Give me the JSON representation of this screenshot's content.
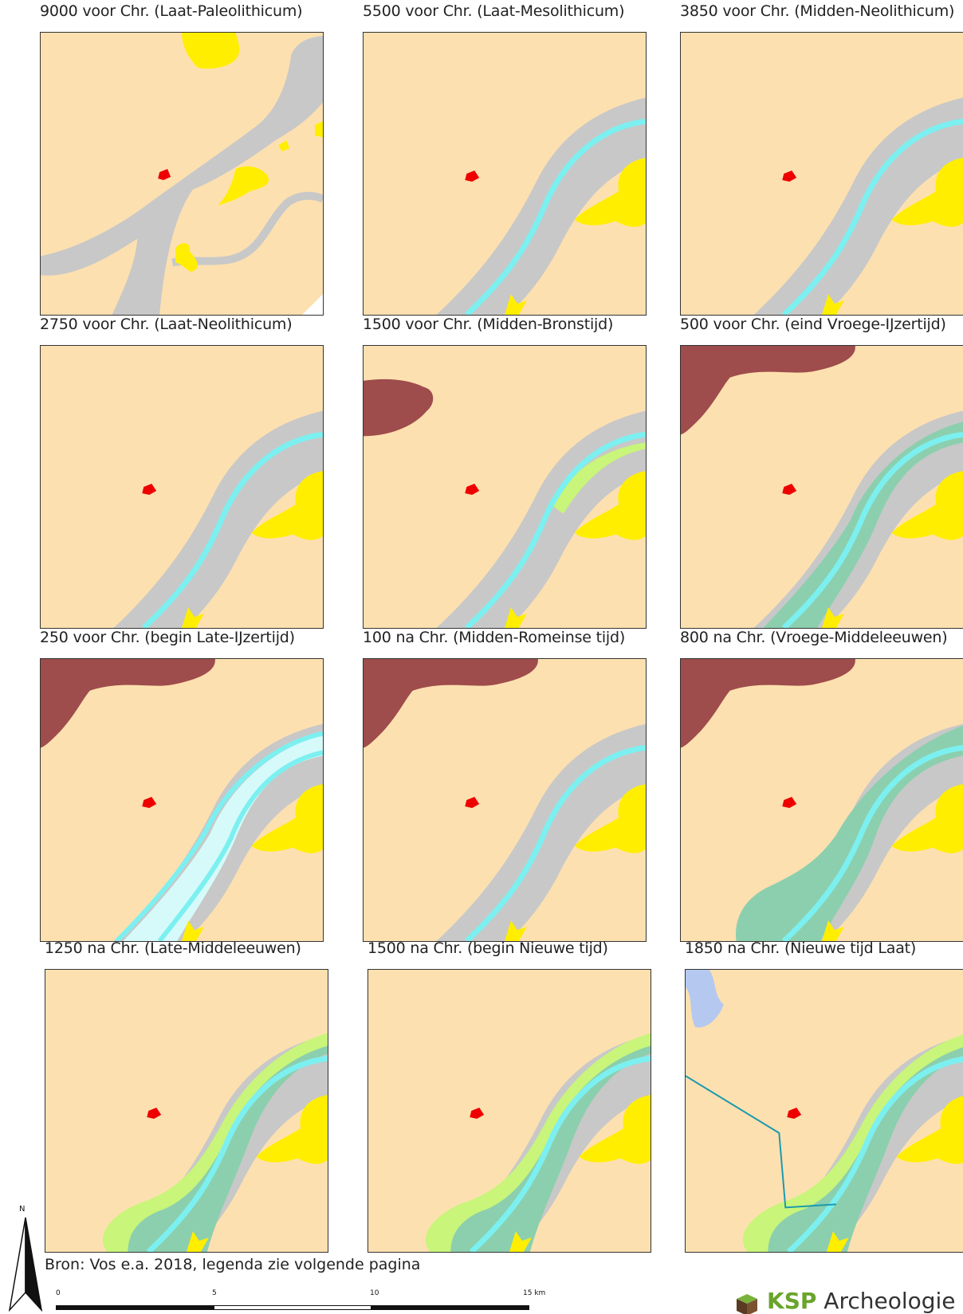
{
  "panels": [
    {
      "title": "9000 voor Chr. (Laat-Paleolithicum)",
      "variant": "p1"
    },
    {
      "title": "5500 voor Chr. (Laat-Mesolithicum)",
      "variant": "p2"
    },
    {
      "title": "3850 voor Chr. (Midden-Neolithicum)",
      "variant": "p2"
    },
    {
      "title": "2750 voor Chr. (Laat-Neolithicum)",
      "variant": "p2"
    },
    {
      "title": "1500 voor Chr. (Midden-Bronstijd)",
      "variant": "p5"
    },
    {
      "title": "500 voor Chr. (eind Vroege-IJzertijd)",
      "variant": "p6"
    },
    {
      "title": "250 voor Chr. (begin Late-IJzertijd)",
      "variant": "p7"
    },
    {
      "title": "100 na Chr. (Midden-Romeinse tijd)",
      "variant": "p8"
    },
    {
      "title": "800 na Chr. (Vroege-Middeleeuwen)",
      "variant": "p9"
    },
    {
      "title": "1250 na Chr. (Late-Middeleeuwen)",
      "variant": "p10"
    },
    {
      "title": "1500 na Chr. (begin Nieuwe tijd)",
      "variant": "p10"
    },
    {
      "title": "1850 na Chr. (Nieuwe tijd Laat)",
      "variant": "p12"
    }
  ],
  "source_text": "Bron: Vos e.a. 2018, legenda zie volgende pagina",
  "north_label": "N",
  "scale_ticks": [
    "0",
    "5",
    "10",
    "15 km"
  ],
  "logo": {
    "ksp": "KSP",
    "name": "Archeologie"
  },
  "colors": {
    "land": "#fde0b0",
    "floodplain": "#c8c8c8",
    "channel": "#7cf0f0",
    "dune": "#ffee00",
    "site": "#ee0000",
    "peat": "#9e4c4c",
    "meander_belt": "#8ccfae",
    "levee": "#c8f57a",
    "lake": "#b4c8f0",
    "dike": "#1a9ab0"
  }
}
